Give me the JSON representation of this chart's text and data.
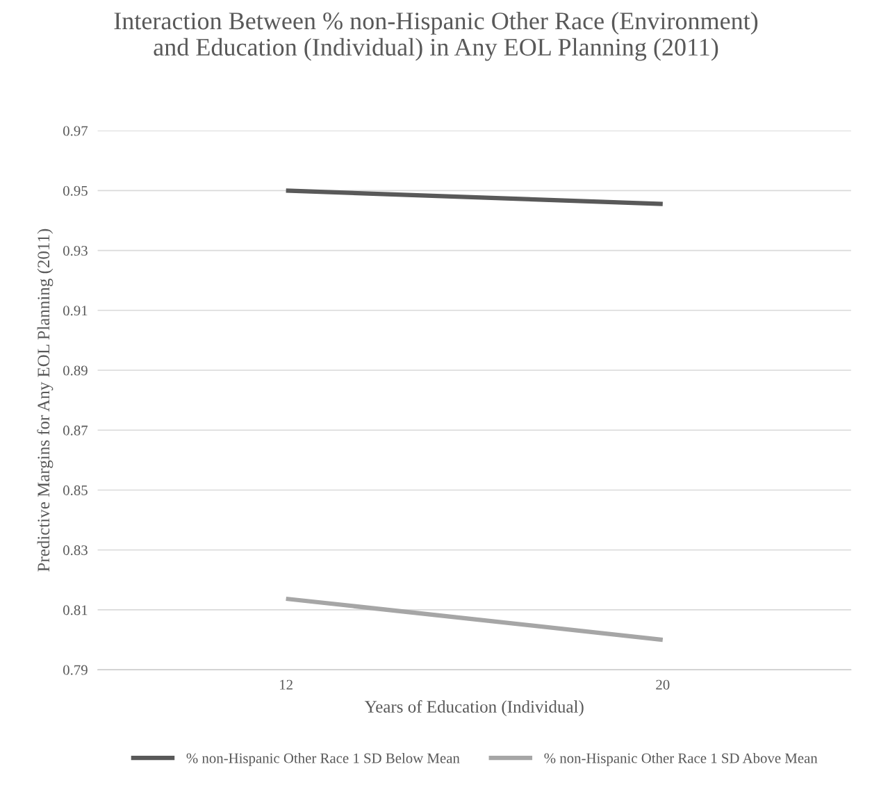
{
  "chart_data": {
    "type": "line",
    "title": "Interaction Between % non-Hispanic Other Race (Environment)\nand Education (Individual) in Any EOL Planning (2011)",
    "xlabel": "Years of Education (Individual)",
    "ylabel": "Predictive Margins for Any EOL Planning (2011)",
    "categories": [
      "12",
      "20"
    ],
    "series": [
      {
        "name": "% non-Hispanic Other Race 1 SD Below Mean",
        "color": "#595959",
        "values": [
          0.95,
          0.9455
        ]
      },
      {
        "name": "% non-Hispanic Other Race 1 SD Above Mean",
        "color": "#a6a6a6",
        "values": [
          0.8137,
          0.8
        ]
      }
    ],
    "ylim": [
      0.79,
      0.97
    ],
    "yticks": [
      0.79,
      0.81,
      0.83,
      0.85,
      0.87,
      0.89,
      0.91,
      0.93,
      0.95,
      0.97
    ],
    "grid": "y",
    "legend": "bottom",
    "marker": "none",
    "line_style": "solid"
  }
}
